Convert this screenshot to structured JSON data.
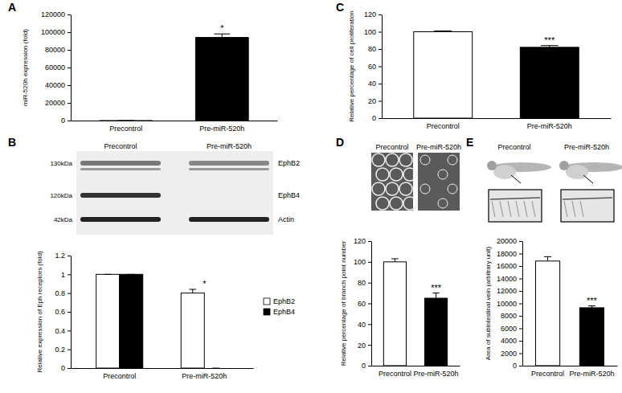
{
  "chart_data": [
    {
      "type": "bar",
      "title": "A",
      "y_label": "miR-520h expression (fold)",
      "categories": [
        "Precontrol",
        "Pre-miR-520h"
      ],
      "values": [
        1,
        94000
      ],
      "errors": [
        0,
        4000
      ],
      "colors": [
        "#ffffff",
        "#000000"
      ],
      "ylim": [
        0,
        120000
      ],
      "yticks": [
        0,
        20000,
        40000,
        60000,
        80000,
        100000,
        120000
      ],
      "grid": false,
      "annotations": [
        {
          "text": "*",
          "category": "Pre-miR-520h"
        }
      ]
    },
    {
      "type": "bar",
      "title": "B",
      "y_label": "Relative expression of Eph receptors (fold)",
      "categories": [
        "Precontrol",
        "Pre-miR-520h"
      ],
      "series": [
        {
          "name": "EphB2",
          "color": "#ffffff",
          "values": [
            1,
            0.8
          ],
          "errors": [
            0,
            0.04
          ]
        },
        {
          "name": "EphB4",
          "color": "#000000",
          "values": [
            1,
            0
          ],
          "errors": [
            0,
            0
          ]
        }
      ],
      "ylim": [
        0,
        1.2
      ],
      "yticks": [
        0,
        0.2,
        0.4,
        0.6,
        0.8,
        1,
        1.2
      ],
      "grid": false,
      "legend": "right",
      "annotations": [
        {
          "text": "*",
          "category": "Pre-miR-520h"
        }
      ]
    },
    {
      "type": "bar",
      "title": "C",
      "y_label": "Relative percentage of cell proliferation",
      "categories": [
        "Precontrol",
        "Pre-miR-520h"
      ],
      "values": [
        100,
        82
      ],
      "errors": [
        1,
        2
      ],
      "colors": [
        "#ffffff",
        "#000000"
      ],
      "ylim": [
        0,
        120
      ],
      "yticks": [
        0,
        20,
        40,
        60,
        80,
        100,
        120
      ],
      "grid": false,
      "annotations": [
        {
          "text": "***",
          "category": "Pre-miR-520h"
        }
      ]
    },
    {
      "type": "bar",
      "title": "D",
      "y_label": "Relative percentage of branch point number",
      "categories": [
        "Precontrol",
        "Pre-miR-520h"
      ],
      "values": [
        100,
        65
      ],
      "errors": [
        3,
        5
      ],
      "colors": [
        "#ffffff",
        "#000000"
      ],
      "ylim": [
        0,
        120
      ],
      "yticks": [
        0,
        20,
        40,
        60,
        80,
        100,
        120
      ],
      "grid": false,
      "annotations": [
        {
          "text": "***",
          "category": "Pre-miR-520h"
        }
      ]
    },
    {
      "type": "bar",
      "title": "E",
      "y_label": "Area of subintestinal vein (arbitrary unit)",
      "categories": [
        "Precontrol",
        "Pre-miR-520h"
      ],
      "values": [
        16800,
        9300
      ],
      "errors": [
        700,
        300
      ],
      "colors": [
        "#ffffff",
        "#000000"
      ],
      "ylim": [
        0,
        20000
      ],
      "yticks": [
        0,
        2000,
        4000,
        6000,
        8000,
        10000,
        12000,
        14000,
        16000,
        18000,
        20000
      ],
      "grid": false,
      "annotations": [
        {
          "text": "***",
          "category": "Pre-miR-520h"
        }
      ]
    }
  ],
  "images": {
    "blot": {
      "lanes": [
        "Precontrol",
        "Pre-miR-520h"
      ],
      "bands": [
        {
          "size": "130kDa",
          "protein": "EphB2"
        },
        {
          "size": "120kDa",
          "protein": "EphB4"
        },
        {
          "size": "42kDa",
          "protein": "Actin"
        }
      ]
    },
    "angiogenesis": {
      "labels": [
        "Precontrol",
        "Pre-miR-520h"
      ]
    },
    "zebrafish": {
      "labels": [
        "Precontrol",
        "Pre-miR-520h"
      ]
    }
  }
}
